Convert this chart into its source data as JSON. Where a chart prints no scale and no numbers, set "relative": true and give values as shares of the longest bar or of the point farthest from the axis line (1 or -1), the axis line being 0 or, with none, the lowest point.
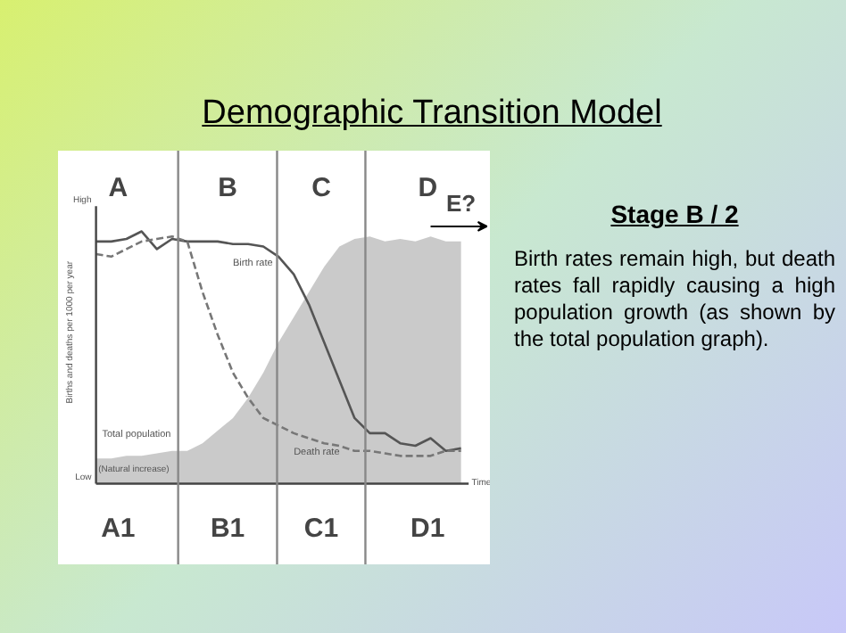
{
  "chart_data": {
    "type": "line",
    "relative": true,
    "title": "Demographic Transition Model",
    "ylabel": "Births and deaths per 1000 per year",
    "categories": [
      null,
      null,
      null,
      null,
      null,
      null,
      null,
      null,
      null,
      null,
      null,
      null,
      null,
      null,
      null,
      null,
      null,
      null,
      null,
      null,
      null,
      null,
      null,
      null,
      null
    ],
    "series": [
      {
        "name": "Total population",
        "type": "area",
        "color": "#bdbdbd",
        "values": [
          0.1,
          0.1,
          0.11,
          0.11,
          0.12,
          0.13,
          0.13,
          0.16,
          0.21,
          0.26,
          0.34,
          0.44,
          0.56,
          0.66,
          0.76,
          0.86,
          0.94,
          0.97,
          0.98,
          0.96,
          0.97,
          0.96,
          0.98,
          0.96,
          0.96
        ]
      },
      {
        "name": "Birth rate",
        "color": "#555555",
        "line_style": "solid",
        "values": [
          0.96,
          0.96,
          0.97,
          1.0,
          0.93,
          0.97,
          0.96,
          0.96,
          0.96,
          0.95,
          0.95,
          0.94,
          0.9,
          0.83,
          0.71,
          0.56,
          0.41,
          0.26,
          0.2,
          0.2,
          0.16,
          0.15,
          0.18,
          0.13,
          0.14
        ]
      },
      {
        "name": "Death rate",
        "color": "#777777",
        "line_style": "dashed",
        "values": [
          0.91,
          0.9,
          0.93,
          0.96,
          0.97,
          0.98,
          0.96,
          0.76,
          0.59,
          0.44,
          0.34,
          0.26,
          0.23,
          0.2,
          0.18,
          0.16,
          0.15,
          0.13,
          0.13,
          0.12,
          0.11,
          0.11,
          0.11,
          0.13,
          0.13
        ]
      }
    ],
    "annotations": [
      "A",
      "B",
      "C",
      "D",
      "A1",
      "B1",
      "C1",
      "D1",
      "E?",
      "High",
      "Low",
      "Time",
      "(Natural increase)",
      "Stage B / 2",
      "Birth rates remain high, but death rates fall rapidly causing a high population growth (as shown by the total population graph)."
    ],
    "grid": false
  }
}
